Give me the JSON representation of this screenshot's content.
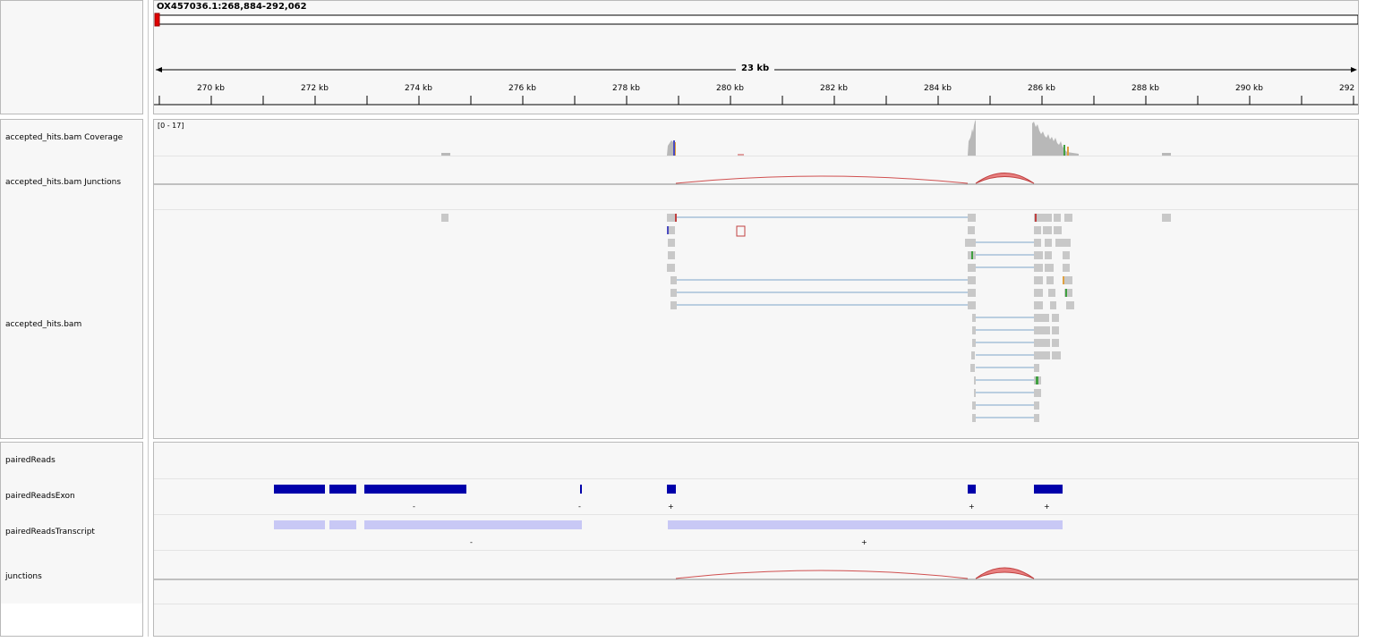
{
  "header": {
    "locus": "OX457036.1:268,884-292,062",
    "range_width": "23 kb",
    "ruler_ticks": [
      "270 kb",
      "272 kb",
      "274 kb",
      "276 kb",
      "278 kb",
      "280 kb",
      "282 kb",
      "284 kb",
      "286 kb",
      "288 kb",
      "290 kb",
      "292"
    ]
  },
  "tracks": {
    "alignment_panel": [
      {
        "name": "accepted_hits.bam Coverage"
      },
      {
        "name": "accepted_hits.bam Junctions"
      },
      {
        "name": "accepted_hits.bam"
      }
    ],
    "feature_panel": [
      {
        "name": "pairedReads"
      },
      {
        "name": "pairedReadsExon"
      },
      {
        "name": "pairedReadsTranscript"
      },
      {
        "name": "junctions"
      }
    ]
  },
  "coverage": {
    "data_range": "[0 - 17]"
  },
  "strand_markers": {
    "exon": [
      "-",
      "-",
      "+",
      "+",
      "+"
    ],
    "transcript": [
      "-",
      "+"
    ]
  },
  "colors": {
    "coverage_gray": "#b8b8b8",
    "read_gray": "#c8c8c8",
    "junction_red": "#e06666",
    "exon_blue": "#0000aa",
    "transcript_blue": "#c8c8f5",
    "split_line": "#7ea4c9"
  }
}
